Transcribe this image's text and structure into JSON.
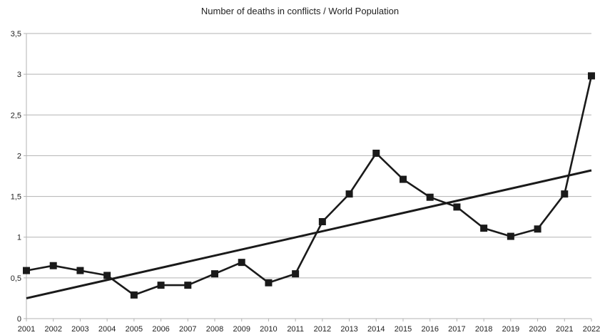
{
  "chart_data": {
    "type": "line",
    "title": "Number of deaths in conflicts / World Population",
    "xlabel": "",
    "ylabel": "",
    "categories": [
      "2001",
      "2002",
      "2003",
      "2004",
      "2005",
      "2006",
      "2007",
      "2008",
      "2009",
      "2010",
      "2011",
      "2012",
      "2013",
      "2014",
      "2015",
      "2016",
      "2017",
      "2018",
      "2019",
      "2020",
      "2021",
      "2022"
    ],
    "series": [
      {
        "marker": "square",
        "color": "#1a1a1a",
        "values": [
          0.59,
          0.65,
          0.59,
          0.53,
          0.29,
          0.41,
          0.41,
          0.55,
          0.69,
          0.44,
          0.55,
          1.19,
          1.53,
          2.03,
          1.71,
          1.49,
          1.37,
          1.11,
          1.01,
          1.1,
          1.53,
          2.98
        ]
      }
    ],
    "trendline": {
      "type": "linear",
      "color": "#1a1a1a",
      "start_value": 0.25,
      "end_value": 1.82
    },
    "ylim": [
      0,
      3.5
    ],
    "yticks": [
      "0",
      "0,5",
      "1",
      "1,5",
      "2",
      "2,5",
      "3",
      "3,5"
    ],
    "grid": true,
    "legend": "none"
  }
}
